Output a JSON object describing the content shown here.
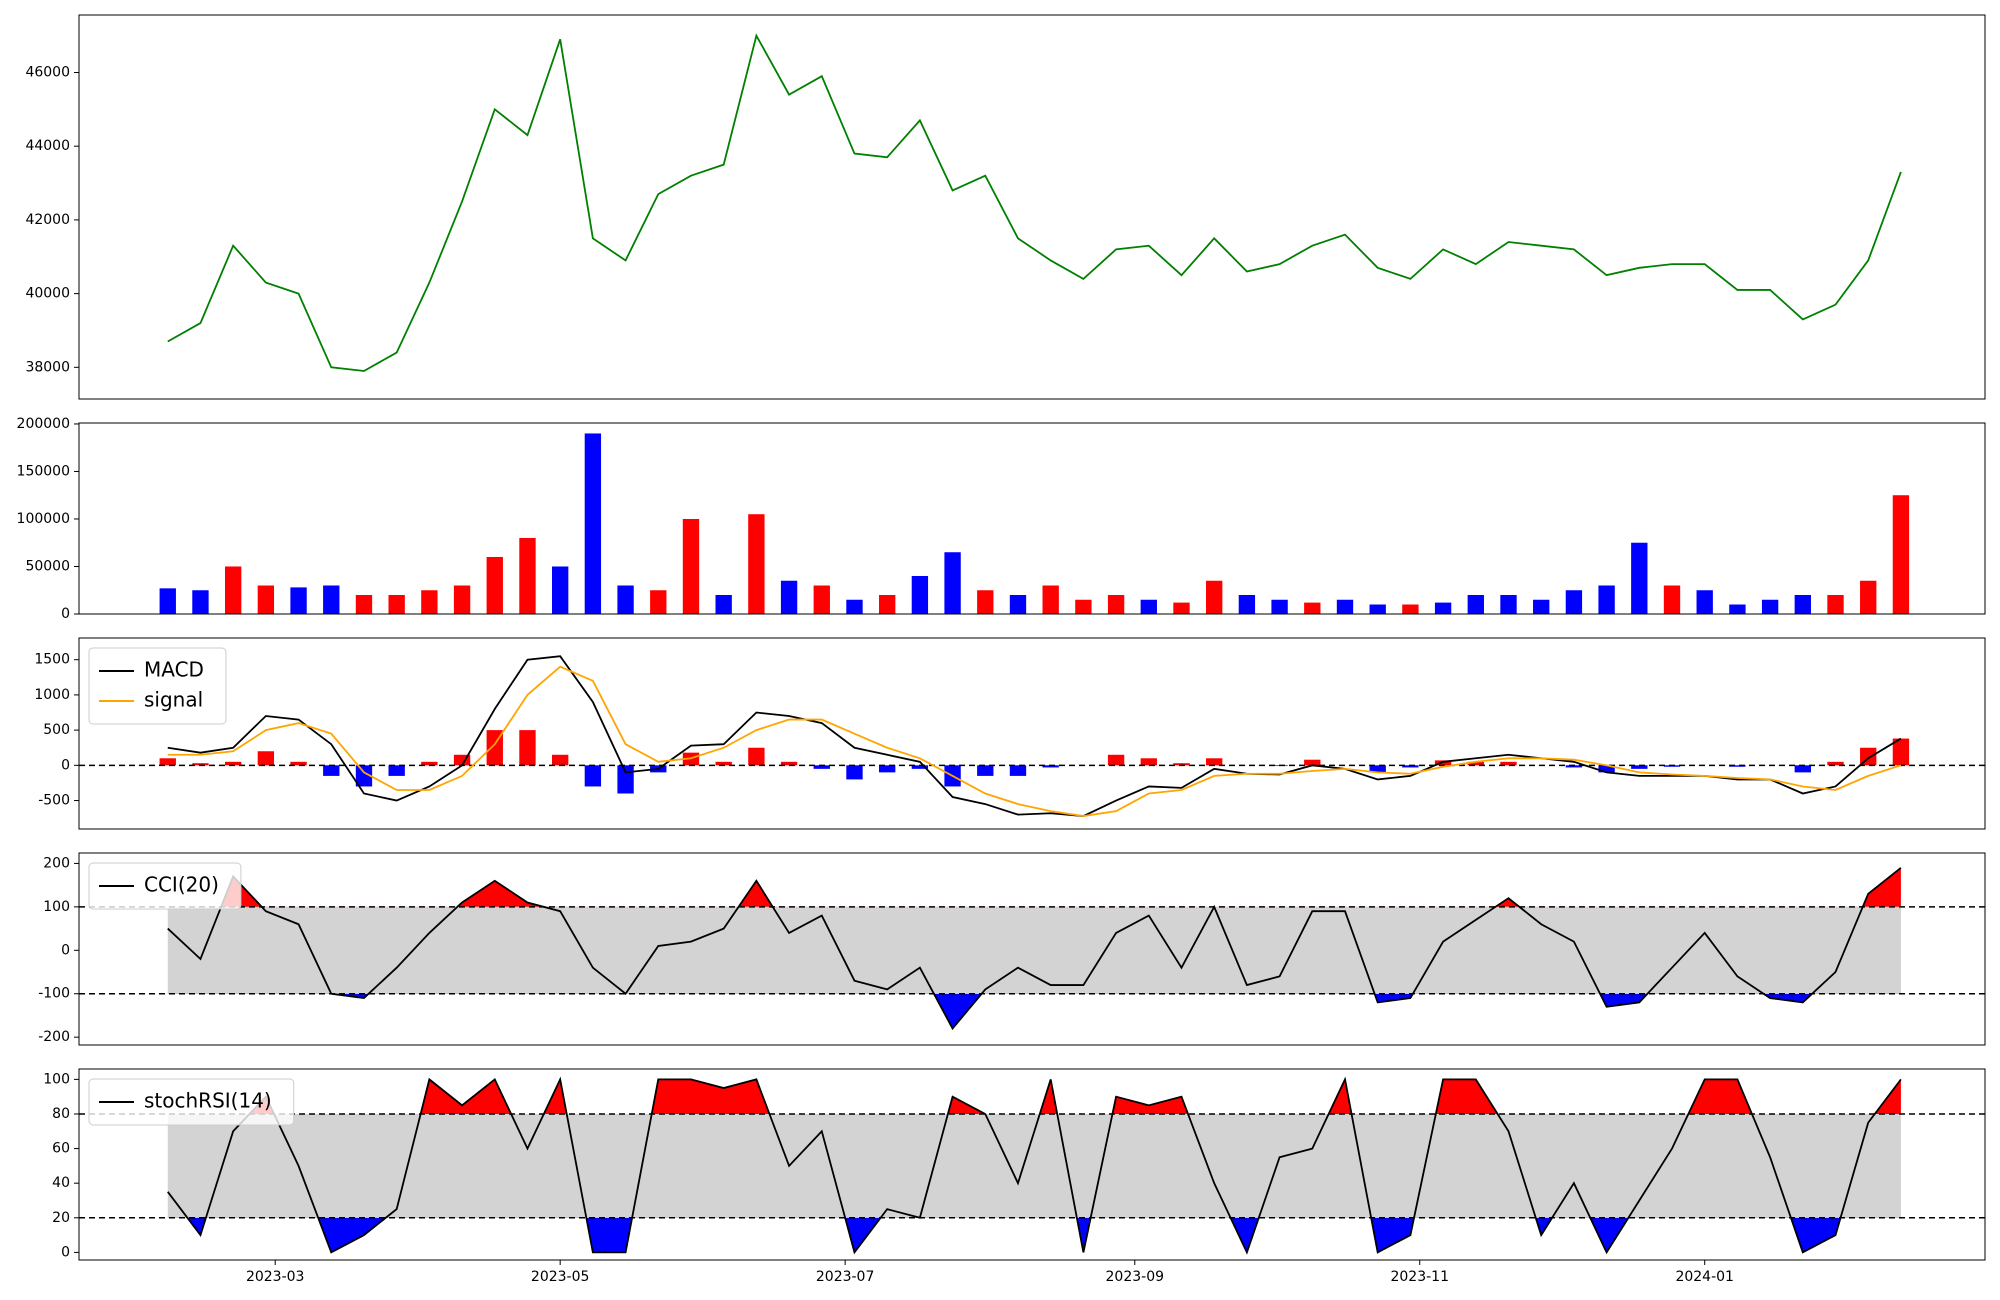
{
  "chart_data": [
    {
      "type": "line",
      "color": "green",
      "x": [
        "2023-02-06",
        "2023-02-13",
        "2023-02-20",
        "2023-02-27",
        "2023-03-06",
        "2023-03-13",
        "2023-03-20",
        "2023-03-27",
        "2023-04-03",
        "2023-04-10",
        "2023-04-17",
        "2023-04-24",
        "2023-05-01",
        "2023-05-08",
        "2023-05-15",
        "2023-05-22",
        "2023-05-29",
        "2023-06-05",
        "2023-06-12",
        "2023-06-19",
        "2023-06-26",
        "2023-07-03",
        "2023-07-10",
        "2023-07-17",
        "2023-07-24",
        "2023-07-31",
        "2023-08-07",
        "2023-08-14",
        "2023-08-21",
        "2023-08-28",
        "2023-09-04",
        "2023-09-11",
        "2023-09-18",
        "2023-09-25",
        "2023-10-02",
        "2023-10-09",
        "2023-10-16",
        "2023-10-23",
        "2023-10-30",
        "2023-11-06",
        "2023-11-13",
        "2023-11-20",
        "2023-11-27",
        "2023-12-04",
        "2023-12-11",
        "2023-12-18",
        "2023-12-25",
        "2024-01-01",
        "2024-01-08",
        "2024-01-15",
        "2024-01-22",
        "2024-01-29",
        "2024-02-05",
        "2024-02-12"
      ],
      "values": [
        38700,
        39200,
        41300,
        40300,
        40000,
        38000,
        37900,
        38400,
        40300,
        42500,
        45000,
        44300,
        46900,
        41500,
        40900,
        42700,
        43200,
        43500,
        47000,
        45400,
        45900,
        43800,
        43700,
        44700,
        42800,
        43200,
        41500,
        40900,
        40400,
        41200,
        41300,
        40500,
        41500,
        40600,
        40800,
        41300,
        41600,
        40700,
        40400,
        41200,
        40800,
        41400,
        41300,
        41200,
        40500,
        40700,
        40800,
        40800,
        40100,
        40100,
        39300,
        39700,
        40900,
        43300
      ],
      "xlim": [
        "2023-01-18",
        "2024-03-01"
      ],
      "ylim": [
        37140,
        47560
      ],
      "yticks": [
        38000,
        40000,
        42000,
        44000,
        46000
      ]
    },
    {
      "type": "bar",
      "x": [
        "2023-02-06",
        "2023-02-13",
        "2023-02-20",
        "2023-02-27",
        "2023-03-06",
        "2023-03-13",
        "2023-03-20",
        "2023-03-27",
        "2023-04-03",
        "2023-04-10",
        "2023-04-17",
        "2023-04-24",
        "2023-05-01",
        "2023-05-08",
        "2023-05-15",
        "2023-05-22",
        "2023-05-29",
        "2023-06-05",
        "2023-06-12",
        "2023-06-19",
        "2023-06-26",
        "2023-07-03",
        "2023-07-10",
        "2023-07-17",
        "2023-07-24",
        "2023-07-31",
        "2023-08-07",
        "2023-08-14",
        "2023-08-21",
        "2023-08-28",
        "2023-09-04",
        "2023-09-11",
        "2023-09-18",
        "2023-09-25",
        "2023-10-02",
        "2023-10-09",
        "2023-10-16",
        "2023-10-23",
        "2023-10-30",
        "2023-11-06",
        "2023-11-13",
        "2023-11-20",
        "2023-11-27",
        "2023-12-04",
        "2023-12-11",
        "2023-12-18",
        "2023-12-25",
        "2024-01-01",
        "2024-01-08",
        "2024-01-15",
        "2024-01-22",
        "2024-01-29",
        "2024-02-05",
        "2024-02-12"
      ],
      "values": [
        27000,
        25000,
        50000,
        30000,
        28000,
        30000,
        20000,
        20000,
        25000,
        30000,
        60000,
        80000,
        50000,
        190000,
        30000,
        25000,
        100000,
        20000,
        105000,
        35000,
        30000,
        15000,
        20000,
        40000,
        65000,
        25000,
        20000,
        30000,
        15000,
        20000,
        15000,
        12000,
        35000,
        20000,
        15000,
        12000,
        15000,
        10000,
        10000,
        12000,
        20000,
        20000,
        15000,
        25000,
        30000,
        75000,
        30000,
        25000,
        10000,
        15000,
        20000,
        20000,
        35000,
        125000
      ],
      "colors": [
        "blue",
        "blue",
        "red",
        "red",
        "blue",
        "blue",
        "red",
        "red",
        "red",
        "red",
        "red",
        "red",
        "blue",
        "blue",
        "blue",
        "red",
        "red",
        "blue",
        "red",
        "blue",
        "red",
        "blue",
        "red",
        "blue",
        "blue",
        "red",
        "blue",
        "red",
        "red",
        "red",
        "blue",
        "red",
        "red",
        "blue",
        "blue",
        "red",
        "blue",
        "blue",
        "red",
        "blue",
        "blue",
        "blue",
        "blue",
        "blue",
        "blue",
        "blue",
        "red",
        "blue",
        "blue",
        "blue",
        "blue",
        "red",
        "red",
        "red"
      ],
      "xlim": [
        "2023-01-18",
        "2024-03-01"
      ],
      "ylim": [
        0,
        201000
      ],
      "yticks": [
        0,
        50000,
        100000,
        150000,
        200000
      ]
    },
    {
      "type": "macd",
      "legend": "upper left",
      "x": [
        "2023-02-06",
        "2023-02-13",
        "2023-02-20",
        "2023-02-27",
        "2023-03-06",
        "2023-03-13",
        "2023-03-20",
        "2023-03-27",
        "2023-04-03",
        "2023-04-10",
        "2023-04-17",
        "2023-04-24",
        "2023-05-01",
        "2023-05-08",
        "2023-05-15",
        "2023-05-22",
        "2023-05-29",
        "2023-06-05",
        "2023-06-12",
        "2023-06-19",
        "2023-06-26",
        "2023-07-03",
        "2023-07-10",
        "2023-07-17",
        "2023-07-24",
        "2023-07-31",
        "2023-08-07",
        "2023-08-14",
        "2023-08-21",
        "2023-08-28",
        "2023-09-04",
        "2023-09-11",
        "2023-09-18",
        "2023-09-25",
        "2023-10-02",
        "2023-10-09",
        "2023-10-16",
        "2023-10-23",
        "2023-10-30",
        "2023-11-06",
        "2023-11-13",
        "2023-11-20",
        "2023-11-27",
        "2023-12-04",
        "2023-12-11",
        "2023-12-18",
        "2023-12-25",
        "2024-01-01",
        "2024-01-08",
        "2024-01-15",
        "2024-01-22",
        "2024-01-29",
        "2024-02-05",
        "2024-02-12"
      ],
      "series": [
        {
          "name": "MACD",
          "color": "black",
          "values": [
            250,
            180,
            250,
            700,
            650,
            300,
            -400,
            -500,
            -300,
            0,
            800,
            1500,
            1550,
            900,
            -100,
            -50,
            280,
            300,
            750,
            700,
            600,
            250,
            150,
            50,
            -450,
            -550,
            -700,
            -680,
            -720,
            -500,
            -300,
            -320,
            -50,
            -120,
            -130,
            0,
            -50,
            -200,
            -150,
            50,
            100,
            150,
            100,
            50,
            -100,
            -150,
            -150,
            -150,
            -200,
            -200,
            -400,
            -300,
            100,
            380
          ]
        },
        {
          "name": "signal",
          "color": "orange",
          "values": [
            150,
            150,
            200,
            500,
            600,
            450,
            -100,
            -350,
            -350,
            -150,
            300,
            1000,
            1400,
            1200,
            300,
            50,
            100,
            250,
            500,
            650,
            650,
            450,
            250,
            100,
            -150,
            -400,
            -550,
            -650,
            -720,
            -650,
            -400,
            -350,
            -150,
            -120,
            -120,
            -80,
            -50,
            -100,
            -120,
            -20,
            50,
            100,
            100,
            80,
            0,
            -100,
            -130,
            -150,
            -180,
            -200,
            -300,
            -350,
            -150,
            0
          ]
        }
      ],
      "histogram": {
        "values": [
          100,
          30,
          50,
          200,
          50,
          -150,
          -300,
          -150,
          50,
          150,
          500,
          500,
          150,
          -300,
          -400,
          -100,
          180,
          50,
          250,
          50,
          -50,
          -200,
          -100,
          -50,
          -300,
          -150,
          -150,
          -30,
          0,
          150,
          100,
          30,
          100,
          0,
          -10,
          80,
          0,
          -100,
          -30,
          70,
          50,
          50,
          0,
          -30,
          -100,
          -50,
          -20,
          0,
          -20,
          0,
          -100,
          50,
          250,
          380
        ],
        "positive_color": "red",
        "negative_color": "blue"
      },
      "xlim": [
        "2023-01-18",
        "2024-03-01"
      ],
      "ylim": [
        -904,
        1808
      ],
      "yticks": [
        -500,
        0,
        500,
        1000,
        1500
      ]
    },
    {
      "type": "oscillator",
      "legend": "upper left",
      "x": [
        "2023-02-06",
        "2023-02-13",
        "2023-02-20",
        "2023-02-27",
        "2023-03-06",
        "2023-03-13",
        "2023-03-20",
        "2023-03-27",
        "2023-04-03",
        "2023-04-10",
        "2023-04-17",
        "2023-04-24",
        "2023-05-01",
        "2023-05-08",
        "2023-05-15",
        "2023-05-22",
        "2023-05-29",
        "2023-06-05",
        "2023-06-12",
        "2023-06-19",
        "2023-06-26",
        "2023-07-03",
        "2023-07-10",
        "2023-07-17",
        "2023-07-24",
        "2023-07-31",
        "2023-08-07",
        "2023-08-14",
        "2023-08-21",
        "2023-08-28",
        "2023-09-04",
        "2023-09-11",
        "2023-09-18",
        "2023-09-25",
        "2023-10-02",
        "2023-10-09",
        "2023-10-16",
        "2023-10-23",
        "2023-10-30",
        "2023-11-06",
        "2023-11-13",
        "2023-11-20",
        "2023-11-27",
        "2023-12-04",
        "2023-12-11",
        "2023-12-18",
        "2023-12-25",
        "2024-01-01",
        "2024-01-08",
        "2024-01-15",
        "2024-01-22",
        "2024-01-29",
        "2024-02-05",
        "2024-02-12"
      ],
      "series": [
        {
          "name": "CCI(20)",
          "color": "black",
          "values": [
            50,
            -20,
            170,
            90,
            60,
            -100,
            -110,
            -40,
            40,
            110,
            160,
            110,
            90,
            -40,
            -100,
            10,
            20,
            50,
            160,
            40,
            80,
            -70,
            -90,
            -40,
            -180,
            -90,
            -40,
            -80,
            -80,
            40,
            80,
            -40,
            100,
            -80,
            -60,
            90,
            90,
            -120,
            -110,
            20,
            70,
            120,
            60,
            20,
            -130,
            -120,
            -40,
            40,
            -60,
            -110,
            -120,
            -50,
            130,
            190
          ]
        }
      ],
      "upper": 100,
      "lower": -100,
      "band_color": "lightgray",
      "upper_color": "red",
      "lower_color": "blue",
      "xlim": [
        "2023-01-18",
        "2024-03-01"
      ],
      "ylim": [
        -218,
        224
      ],
      "yticks": [
        -200,
        -100,
        0,
        100,
        200
      ]
    },
    {
      "type": "oscillator",
      "legend": "upper left",
      "x": [
        "2023-02-06",
        "2023-02-13",
        "2023-02-20",
        "2023-02-27",
        "2023-03-06",
        "2023-03-13",
        "2023-03-20",
        "2023-03-27",
        "2023-04-03",
        "2023-04-10",
        "2023-04-17",
        "2023-04-24",
        "2023-05-01",
        "2023-05-08",
        "2023-05-15",
        "2023-05-22",
        "2023-05-29",
        "2023-06-05",
        "2023-06-12",
        "2023-06-19",
        "2023-06-26",
        "2023-07-03",
        "2023-07-10",
        "2023-07-17",
        "2023-07-24",
        "2023-07-31",
        "2023-08-07",
        "2023-08-14",
        "2023-08-21",
        "2023-08-28",
        "2023-09-04",
        "2023-09-11",
        "2023-09-18",
        "2023-09-25",
        "2023-10-02",
        "2023-10-09",
        "2023-10-16",
        "2023-10-23",
        "2023-10-30",
        "2023-11-06",
        "2023-11-13",
        "2023-11-20",
        "2023-11-27",
        "2023-12-04",
        "2023-12-11",
        "2023-12-18",
        "2023-12-25",
        "2024-01-01",
        "2024-01-08",
        "2024-01-15",
        "2024-01-22",
        "2024-01-29",
        "2024-02-05",
        "2024-02-12"
      ],
      "series": [
        {
          "name": "stochRSI(14)",
          "color": "black",
          "values": [
            35,
            10,
            70,
            90,
            50,
            0,
            10,
            25,
            100,
            85,
            100,
            60,
            100,
            0,
            0,
            100,
            100,
            95,
            100,
            50,
            70,
            0,
            25,
            20,
            90,
            80,
            40,
            100,
            0,
            90,
            85,
            90,
            40,
            0,
            55,
            60,
            100,
            0,
            10,
            100,
            100,
            70,
            10,
            40,
            0,
            30,
            60,
            100,
            100,
            55,
            0,
            10,
            75,
            100
          ]
        }
      ],
      "upper": 80,
      "lower": 20,
      "band_color": "lightgray",
      "upper_color": "red",
      "lower_color": "blue",
      "xlim": [
        "2023-01-18",
        "2024-03-01"
      ],
      "ylim": [
        -4.4,
        106
      ],
      "yticks": [
        0,
        20,
        40,
        60,
        80,
        100
      ],
      "xticks": [
        {
          "value": "2023-03-01",
          "label": "2023-03"
        },
        {
          "value": "2023-05-01",
          "label": "2023-05"
        },
        {
          "value": "2023-07-01",
          "label": "2023-07"
        },
        {
          "value": "2023-09-01",
          "label": "2023-09"
        },
        {
          "value": "2023-11-01",
          "label": "2023-11"
        },
        {
          "value": "2024-01-01",
          "label": "2024-01"
        }
      ]
    }
  ]
}
